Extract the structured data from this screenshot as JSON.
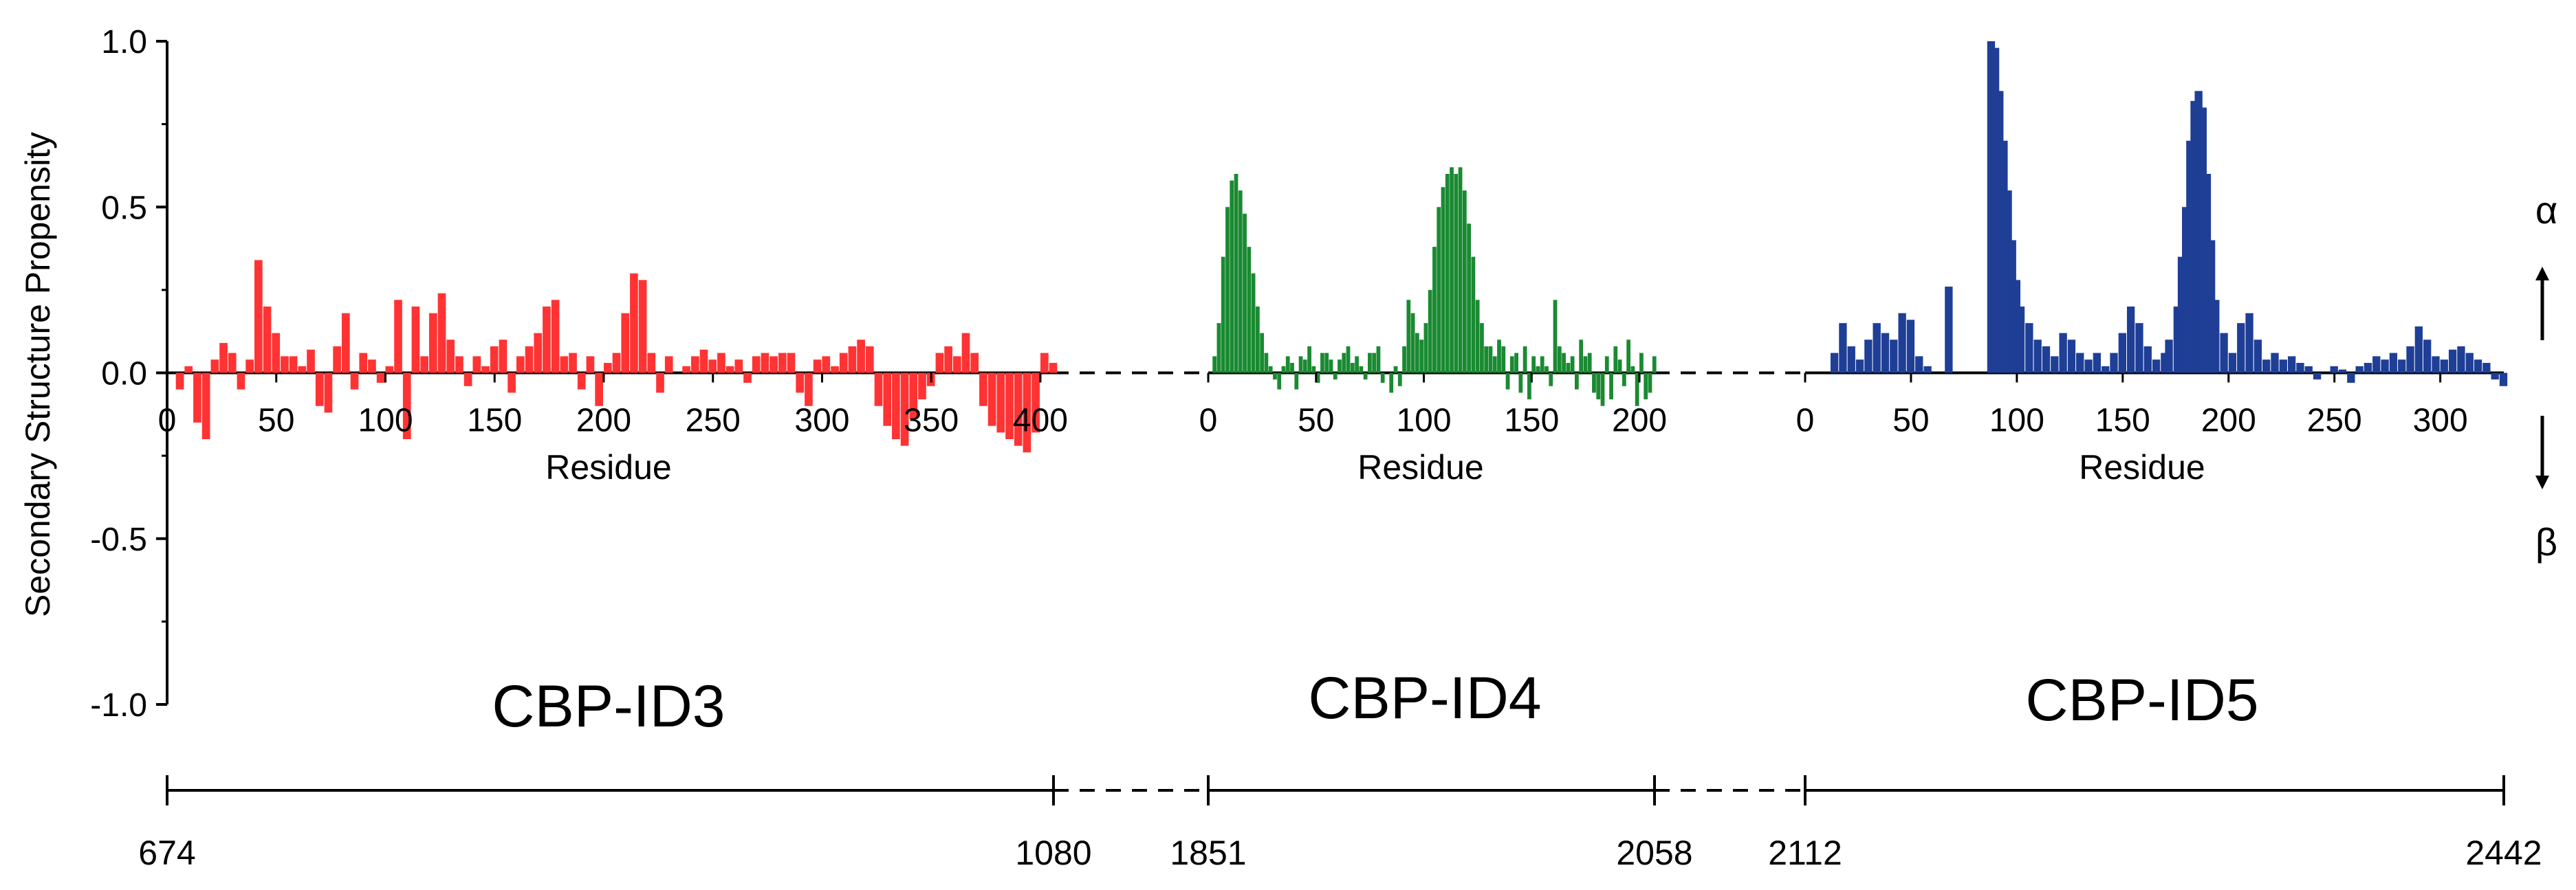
{
  "chart_data": {
    "type": "bar",
    "ylabel": "Secondary Structure Propensity",
    "ylim": [
      -1.0,
      1.0
    ],
    "yticks": [
      "1.0",
      "0.5",
      "0.0",
      "-0.5",
      "-1.0"
    ],
    "grid": false,
    "indicators": {
      "up": "α",
      "down": "β"
    },
    "panels": [
      {
        "name": "CBP-ID3",
        "color": "#ff3333",
        "xlabel": "Residue",
        "xlim": [
          0,
          406
        ],
        "xticks": [
          "0",
          "50",
          "100",
          "150",
          "200",
          "250",
          "300",
          "350",
          "400"
        ],
        "range_start": "674",
        "range_end": "1080",
        "points": [
          [
            0,
            0.0
          ],
          [
            4,
            -0.05
          ],
          [
            8,
            0.02
          ],
          [
            12,
            -0.15
          ],
          [
            16,
            -0.2
          ],
          [
            20,
            0.04
          ],
          [
            24,
            0.09
          ],
          [
            28,
            0.06
          ],
          [
            32,
            -0.05
          ],
          [
            36,
            0.04
          ],
          [
            40,
            0.34
          ],
          [
            44,
            0.2
          ],
          [
            48,
            0.12
          ],
          [
            52,
            0.05
          ],
          [
            56,
            0.05
          ],
          [
            60,
            0.02
          ],
          [
            64,
            0.07
          ],
          [
            68,
            -0.1
          ],
          [
            72,
            -0.12
          ],
          [
            76,
            0.08
          ],
          [
            80,
            0.18
          ],
          [
            84,
            -0.05
          ],
          [
            88,
            0.06
          ],
          [
            92,
            0.04
          ],
          [
            96,
            -0.03
          ],
          [
            100,
            0.02
          ],
          [
            104,
            0.22
          ],
          [
            108,
            -0.2
          ],
          [
            112,
            0.2
          ],
          [
            116,
            0.05
          ],
          [
            120,
            0.18
          ],
          [
            124,
            0.24
          ],
          [
            128,
            0.1
          ],
          [
            132,
            0.05
          ],
          [
            136,
            -0.04
          ],
          [
            140,
            0.05
          ],
          [
            144,
            0.02
          ],
          [
            148,
            0.08
          ],
          [
            152,
            0.1
          ],
          [
            156,
            -0.06
          ],
          [
            160,
            0.05
          ],
          [
            164,
            0.08
          ],
          [
            168,
            0.12
          ],
          [
            172,
            0.2
          ],
          [
            176,
            0.22
          ],
          [
            180,
            0.05
          ],
          [
            184,
            0.06
          ],
          [
            188,
            -0.05
          ],
          [
            192,
            0.05
          ],
          [
            196,
            -0.1
          ],
          [
            200,
            0.03
          ],
          [
            204,
            0.06
          ],
          [
            208,
            0.18
          ],
          [
            212,
            0.3
          ],
          [
            216,
            0.28
          ],
          [
            220,
            0.06
          ],
          [
            224,
            -0.06
          ],
          [
            228,
            0.05
          ],
          [
            232,
            0.0
          ],
          [
            236,
            0.02
          ],
          [
            240,
            0.05
          ],
          [
            244,
            0.07
          ],
          [
            248,
            0.04
          ],
          [
            252,
            0.06
          ],
          [
            256,
            0.02
          ],
          [
            260,
            0.04
          ],
          [
            264,
            -0.03
          ],
          [
            268,
            0.05
          ],
          [
            272,
            0.06
          ],
          [
            276,
            0.05
          ],
          [
            280,
            0.06
          ],
          [
            284,
            0.06
          ],
          [
            288,
            -0.06
          ],
          [
            292,
            -0.1
          ],
          [
            296,
            0.04
          ],
          [
            300,
            0.05
          ],
          [
            304,
            0.02
          ],
          [
            308,
            0.06
          ],
          [
            312,
            0.08
          ],
          [
            316,
            0.1
          ],
          [
            320,
            0.08
          ],
          [
            324,
            -0.1
          ],
          [
            328,
            -0.16
          ],
          [
            332,
            -0.2
          ],
          [
            336,
            -0.22
          ],
          [
            340,
            -0.14
          ],
          [
            344,
            -0.08
          ],
          [
            348,
            -0.04
          ],
          [
            352,
            0.06
          ],
          [
            356,
            0.08
          ],
          [
            360,
            0.05
          ],
          [
            364,
            0.12
          ],
          [
            368,
            0.06
          ],
          [
            372,
            -0.1
          ],
          [
            376,
            -0.16
          ],
          [
            380,
            -0.18
          ],
          [
            384,
            -0.2
          ],
          [
            388,
            -0.22
          ],
          [
            392,
            -0.24
          ],
          [
            396,
            -0.18
          ],
          [
            400,
            0.06
          ],
          [
            404,
            0.03
          ]
        ]
      },
      {
        "name": "CBP-ID4",
        "color": "#1a8a32",
        "xlabel": "Residue",
        "xlim": [
          0,
          207
        ],
        "xticks": [
          "0",
          "50",
          "100",
          "150",
          "200"
        ],
        "range_start": "1851",
        "range_end": "2058",
        "points": [
          [
            0,
            0.0
          ],
          [
            2,
            0.05
          ],
          [
            4,
            0.15
          ],
          [
            6,
            0.35
          ],
          [
            8,
            0.5
          ],
          [
            10,
            0.58
          ],
          [
            12,
            0.6
          ],
          [
            14,
            0.55
          ],
          [
            16,
            0.48
          ],
          [
            18,
            0.38
          ],
          [
            20,
            0.3
          ],
          [
            22,
            0.2
          ],
          [
            24,
            0.12
          ],
          [
            26,
            0.06
          ],
          [
            28,
            0.02
          ],
          [
            30,
            -0.02
          ],
          [
            32,
            -0.05
          ],
          [
            34,
            0.02
          ],
          [
            36,
            0.05
          ],
          [
            38,
            0.03
          ],
          [
            40,
            -0.05
          ],
          [
            42,
            0.05
          ],
          [
            44,
            0.04
          ],
          [
            46,
            0.08
          ],
          [
            48,
            0.02
          ],
          [
            50,
            -0.03
          ],
          [
            52,
            0.06
          ],
          [
            54,
            0.06
          ],
          [
            56,
            0.04
          ],
          [
            58,
            -0.02
          ],
          [
            60,
            0.04
          ],
          [
            62,
            0.06
          ],
          [
            64,
            0.08
          ],
          [
            66,
            0.03
          ],
          [
            68,
            0.05
          ],
          [
            70,
            0.02
          ],
          [
            72,
            -0.02
          ],
          [
            74,
            0.06
          ],
          [
            76,
            0.06
          ],
          [
            78,
            0.08
          ],
          [
            80,
            -0.03
          ],
          [
            82,
            0.0
          ],
          [
            84,
            -0.06
          ],
          [
            86,
            0.02
          ],
          [
            88,
            -0.04
          ],
          [
            90,
            0.08
          ],
          [
            92,
            0.22
          ],
          [
            94,
            0.18
          ],
          [
            96,
            0.12
          ],
          [
            98,
            0.1
          ],
          [
            100,
            0.15
          ],
          [
            102,
            0.25
          ],
          [
            104,
            0.38
          ],
          [
            106,
            0.5
          ],
          [
            108,
            0.56
          ],
          [
            110,
            0.6
          ],
          [
            112,
            0.62
          ],
          [
            114,
            0.6
          ],
          [
            116,
            0.62
          ],
          [
            118,
            0.55
          ],
          [
            120,
            0.45
          ],
          [
            122,
            0.35
          ],
          [
            124,
            0.22
          ],
          [
            126,
            0.15
          ],
          [
            128,
            0.08
          ],
          [
            130,
            0.08
          ],
          [
            132,
            0.05
          ],
          [
            134,
            0.1
          ],
          [
            136,
            0.08
          ],
          [
            138,
            -0.05
          ],
          [
            140,
            0.05
          ],
          [
            142,
            0.06
          ],
          [
            144,
            -0.06
          ],
          [
            146,
            0.08
          ],
          [
            148,
            -0.08
          ],
          [
            150,
            0.05
          ],
          [
            152,
            0.02
          ],
          [
            154,
            0.05
          ],
          [
            156,
            0.02
          ],
          [
            158,
            -0.04
          ],
          [
            160,
            0.22
          ],
          [
            162,
            0.08
          ],
          [
            164,
            0.06
          ],
          [
            166,
            0.03
          ],
          [
            168,
            0.05
          ],
          [
            170,
            -0.05
          ],
          [
            172,
            0.1
          ],
          [
            174,
            0.05
          ],
          [
            176,
            0.06
          ],
          [
            178,
            -0.06
          ],
          [
            180,
            -0.08
          ],
          [
            182,
            -0.1
          ],
          [
            184,
            0.05
          ],
          [
            186,
            -0.08
          ],
          [
            188,
            0.08
          ],
          [
            190,
            0.04
          ],
          [
            192,
            -0.04
          ],
          [
            194,
            0.1
          ],
          [
            196,
            0.02
          ],
          [
            198,
            -0.1
          ],
          [
            200,
            0.06
          ],
          [
            202,
            -0.08
          ],
          [
            204,
            -0.06
          ],
          [
            206,
            0.05
          ]
        ]
      },
      {
        "name": "CBP-ID5",
        "color": "#1f3e96",
        "xlabel": "Residue",
        "xlim": [
          0,
          330
        ],
        "xticks": [
          "0",
          "50",
          "100",
          "150",
          "200",
          "250",
          "300"
        ],
        "range_start": "2112",
        "range_end": "2442",
        "points": [
          [
            12,
            0.06
          ],
          [
            16,
            0.15
          ],
          [
            20,
            0.08
          ],
          [
            24,
            0.04
          ],
          [
            28,
            0.1
          ],
          [
            32,
            0.15
          ],
          [
            36,
            0.12
          ],
          [
            40,
            0.1
          ],
          [
            44,
            0.18
          ],
          [
            48,
            0.16
          ],
          [
            52,
            0.05
          ],
          [
            56,
            0.02
          ],
          [
            60,
            0.0
          ],
          [
            64,
            0.0
          ],
          [
            66,
            0.26
          ],
          [
            70,
            0.0
          ],
          [
            74,
            0.0
          ],
          [
            78,
            0.0
          ],
          [
            82,
            0.0
          ],
          [
            86,
            1.0
          ],
          [
            88,
            0.98
          ],
          [
            90,
            0.85
          ],
          [
            92,
            0.7
          ],
          [
            94,
            0.55
          ],
          [
            96,
            0.4
          ],
          [
            98,
            0.28
          ],
          [
            100,
            0.2
          ],
          [
            104,
            0.15
          ],
          [
            108,
            0.1
          ],
          [
            112,
            0.08
          ],
          [
            116,
            0.05
          ],
          [
            120,
            0.12
          ],
          [
            124,
            0.1
          ],
          [
            128,
            0.06
          ],
          [
            132,
            0.04
          ],
          [
            136,
            0.06
          ],
          [
            140,
            0.02
          ],
          [
            144,
            0.06
          ],
          [
            148,
            0.12
          ],
          [
            152,
            0.2
          ],
          [
            156,
            0.15
          ],
          [
            160,
            0.08
          ],
          [
            164,
            0.04
          ],
          [
            168,
            0.06
          ],
          [
            170,
            0.1
          ],
          [
            174,
            0.2
          ],
          [
            176,
            0.35
          ],
          [
            178,
            0.5
          ],
          [
            180,
            0.7
          ],
          [
            182,
            0.82
          ],
          [
            184,
            0.85
          ],
          [
            186,
            0.8
          ],
          [
            188,
            0.6
          ],
          [
            190,
            0.4
          ],
          [
            192,
            0.22
          ],
          [
            196,
            0.12
          ],
          [
            200,
            0.06
          ],
          [
            204,
            0.15
          ],
          [
            208,
            0.18
          ],
          [
            212,
            0.1
          ],
          [
            216,
            0.04
          ],
          [
            220,
            0.06
          ],
          [
            224,
            0.04
          ],
          [
            228,
            0.05
          ],
          [
            232,
            0.03
          ],
          [
            236,
            0.02
          ],
          [
            240,
            -0.02
          ],
          [
            244,
            0.0
          ],
          [
            248,
            0.02
          ],
          [
            252,
            0.01
          ],
          [
            256,
            -0.03
          ],
          [
            260,
            0.02
          ],
          [
            264,
            0.03
          ],
          [
            268,
            0.05
          ],
          [
            272,
            0.04
          ],
          [
            276,
            0.06
          ],
          [
            280,
            0.04
          ],
          [
            284,
            0.08
          ],
          [
            288,
            0.14
          ],
          [
            292,
            0.1
          ],
          [
            296,
            0.05
          ],
          [
            300,
            0.04
          ],
          [
            304,
            0.07
          ],
          [
            308,
            0.08
          ],
          [
            312,
            0.06
          ],
          [
            316,
            0.04
          ],
          [
            320,
            0.03
          ],
          [
            324,
            -0.02
          ],
          [
            328,
            -0.04
          ]
        ]
      }
    ]
  }
}
